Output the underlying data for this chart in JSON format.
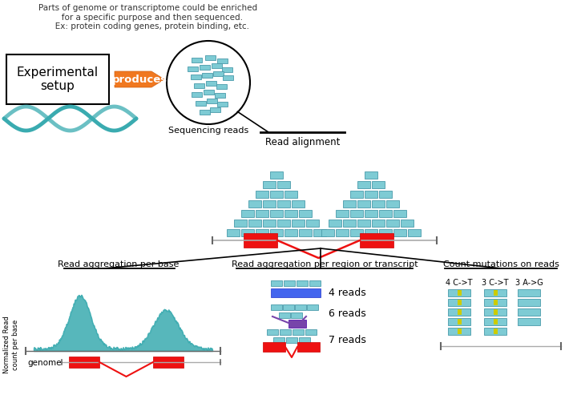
{
  "title_text": "Parts of genome or transcriptome could be enriched\n   for a specific purpose and then sequenced.\n   Ex: protein coding genes, protein binding, etc.",
  "exp_setup_text": "Experimental\nsetup",
  "produces_text": "produces",
  "seq_reads_text": "Sequencing reads",
  "read_align_text": "Read alignment",
  "read_agg_base_text": "Read aggregation per base",
  "read_agg_region_text": "Read aggregation per region or transcript",
  "count_mut_text": "Count mutations on reads",
  "genome_text": "genome",
  "norm_read_text": "Normalized Read\ncount per base",
  "reads_labels": [
    "4 reads",
    "6 reads",
    "7 reads"
  ],
  "mut_labels": [
    "4 C->T",
    "3 C->T",
    "3 A->G"
  ],
  "teal_color": "#3aabb0",
  "read_box_color": "#7ecbd4",
  "read_box_edge": "#4a9aaa",
  "red_color": "#ee1111",
  "blue_bar_color": "#4466ee",
  "purple_color": "#7744aa",
  "orange_color": "#f07820",
  "yellow_stripe": "#cccc00",
  "bg_color": "#ffffff",
  "gray_line": "#aaaaaa",
  "dark_gray": "#666666"
}
